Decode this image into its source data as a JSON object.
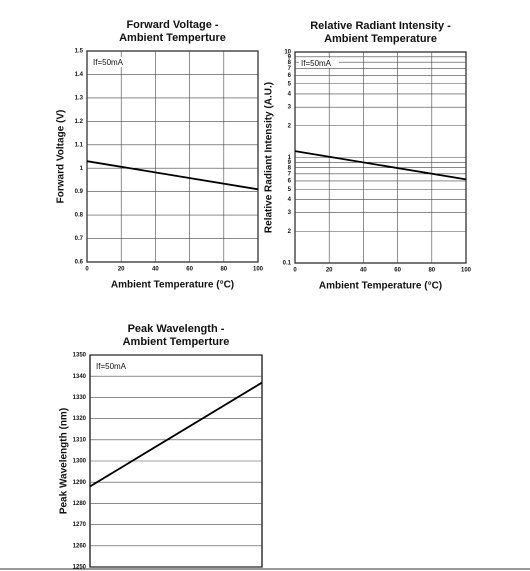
{
  "chart_data": [
    {
      "type": "line",
      "title": [
        "Forward Voltage -",
        "Ambient Temperture"
      ],
      "xlabel": "Ambient Temperature (°C)",
      "ylabel": "Forward Voltage (V)",
      "annotation": "If=50mA",
      "x": [
        0,
        100
      ],
      "series": [
        {
          "name": "If=50mA",
          "color": "#000000",
          "values": [
            1.03,
            0.91
          ]
        }
      ],
      "xlim": [
        0,
        100
      ],
      "xticks": [
        0,
        20,
        40,
        60,
        80,
        100
      ],
      "ylim": [
        0.6,
        1.5
      ],
      "yticks": [
        0.6,
        0.7,
        0.8,
        0.9,
        1.0,
        1.1,
        1.2,
        1.3,
        1.4,
        1.5
      ],
      "grid": true,
      "log": false
    },
    {
      "type": "line",
      "title": [
        "Relative Radiant Intensity -",
        "Ambient Temperature"
      ],
      "xlabel": "Ambient Temperature (°C)",
      "ylabel": "Relative Radiant Intensity (A.U.)",
      "annotation": "If=50mA",
      "x": [
        0,
        100
      ],
      "series": [
        {
          "name": "If=50mA",
          "color": "#000000",
          "values": [
            1.15,
            0.62
          ]
        }
      ],
      "xlim": [
        0,
        100
      ],
      "xticks": [
        0,
        20,
        40,
        60,
        80,
        100
      ],
      "ylim": [
        0.1,
        10
      ],
      "yticks": [
        0.1,
        {
          "value": 0.2,
          "label": "2"
        },
        {
          "value": 0.3,
          "label": "3"
        },
        {
          "value": 0.4,
          "label": "4"
        },
        {
          "value": 0.5,
          "label": "5"
        },
        {
          "value": 0.6,
          "label": "6"
        },
        {
          "value": 0.7,
          "label": "7"
        },
        {
          "value": 0.8,
          "label": "8"
        },
        {
          "value": 0.9,
          "label": "9"
        },
        1,
        {
          "value": 2,
          "label": "2"
        },
        {
          "value": 3,
          "label": "3"
        },
        {
          "value": 4,
          "label": "4"
        },
        {
          "value": 5,
          "label": "5"
        },
        {
          "value": 6,
          "label": "6"
        },
        {
          "value": 7,
          "label": "7"
        },
        {
          "value": 8,
          "label": "8"
        },
        {
          "value": 9,
          "label": "9"
        },
        10
      ],
      "grid": true,
      "log": true
    },
    {
      "type": "line",
      "title": [
        "Peak Wavelength -",
        "Ambient Temperture"
      ],
      "ylabel": "Peak Wavelength (nm)",
      "annotation": "If=50mA",
      "x": [
        0,
        100
      ],
      "series": [
        {
          "name": "If=50mA",
          "color": "#000000",
          "values": [
            1288,
            1337
          ]
        }
      ],
      "xlim": [
        0,
        100
      ],
      "ylim": [
        1250,
        1350
      ],
      "yticks": [
        1250,
        1260,
        1270,
        1280,
        1290,
        1300,
        1310,
        1320,
        1330,
        1340,
        1350
      ],
      "grid": true,
      "log": false
    }
  ]
}
